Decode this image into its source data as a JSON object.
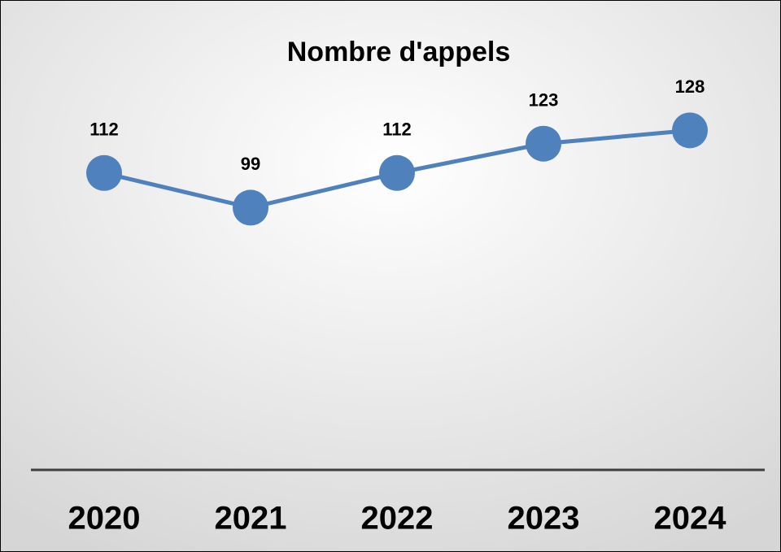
{
  "chart_data": {
    "type": "line",
    "title": "Nombre d'appels",
    "categories": [
      "2020",
      "2021",
      "2022",
      "2023",
      "2024"
    ],
    "values": [
      112,
      99,
      112,
      123,
      128
    ],
    "color": "#4f81bd",
    "ylim": [
      0,
      140
    ]
  }
}
